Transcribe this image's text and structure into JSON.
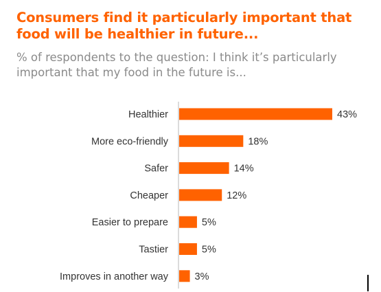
{
  "header": {
    "title": "Consumers find it particularly important that food will be healthier in future...",
    "subtitle": "% of respondents to the question: I think it’s particularly important that my food in the future is..."
  },
  "colors": {
    "accent": "#ff6200",
    "bar": "#ff6200",
    "text": "#333333",
    "subtitle": "#8a8a8a",
    "axis": "#cfcfcf"
  },
  "chart_data": {
    "type": "bar",
    "orientation": "horizontal",
    "categories": [
      "Healthier",
      "More eco-friendly",
      "Safer",
      "Cheaper",
      "Easier to prepare",
      "Tastier",
      "Improves in another way"
    ],
    "values": [
      43,
      18,
      14,
      12,
      5,
      5,
      3
    ],
    "value_labels": [
      "43%",
      "18%",
      "14%",
      "12%",
      "5%",
      "5%",
      "3%"
    ],
    "unit": "%",
    "xlim": [
      0,
      43
    ],
    "grid": false,
    "legend": "none"
  }
}
